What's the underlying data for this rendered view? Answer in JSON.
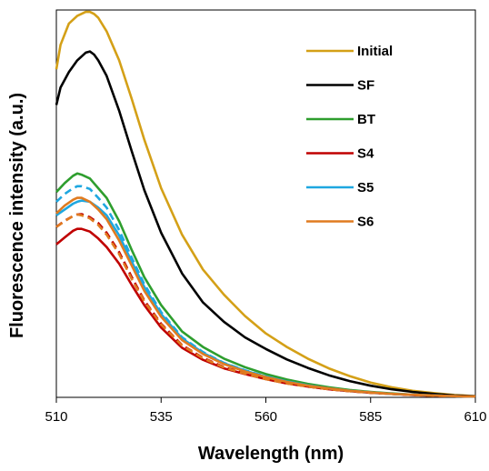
{
  "chart_data": {
    "type": "line",
    "xlabel": "Wavelength (nm)",
    "ylabel": "Fluorescence intensity (a.u.)",
    "xlim": [
      510,
      610
    ],
    "ylim": [
      0,
      1
    ],
    "y_tick_labels_shown": false,
    "x_ticks": [
      510,
      535,
      560,
      585,
      610
    ],
    "x_tick_labels": [
      "510",
      "535",
      "560",
      "585",
      "610"
    ],
    "grid": false,
    "legend": "top-right",
    "legend_entries": [
      "Initial",
      "SF",
      "BT",
      "S4",
      "S5",
      "S6"
    ],
    "series": [
      {
        "name": "Initial",
        "color": "#D4A017",
        "style": "solid",
        "x": [
          510,
          511,
          513,
          515,
          517,
          518,
          519,
          520,
          522,
          525,
          528,
          531,
          535,
          540,
          545,
          550,
          555,
          560,
          565,
          570,
          575,
          580,
          585,
          590,
          595,
          600,
          605,
          610
        ],
        "y": [
          0.847,
          0.91,
          0.965,
          0.985,
          0.995,
          0.995,
          0.99,
          0.98,
          0.945,
          0.87,
          0.77,
          0.665,
          0.54,
          0.42,
          0.33,
          0.265,
          0.21,
          0.165,
          0.13,
          0.1,
          0.075,
          0.055,
          0.038,
          0.026,
          0.017,
          0.011,
          0.006,
          0.003
        ]
      },
      {
        "name": "SF",
        "color": "#000000",
        "style": "solid",
        "x": [
          510,
          511,
          513,
          515,
          517,
          518,
          519,
          520,
          522,
          525,
          528,
          531,
          535,
          540,
          545,
          550,
          555,
          560,
          565,
          570,
          575,
          580,
          585,
          590,
          595,
          600,
          605,
          610
        ],
        "y": [
          0.755,
          0.8,
          0.84,
          0.87,
          0.89,
          0.893,
          0.885,
          0.87,
          0.83,
          0.74,
          0.635,
          0.535,
          0.425,
          0.32,
          0.245,
          0.195,
          0.155,
          0.125,
          0.098,
          0.076,
          0.057,
          0.042,
          0.03,
          0.021,
          0.014,
          0.009,
          0.005,
          0.003
        ]
      },
      {
        "name": "BT",
        "color": "#2E9E2E",
        "style": "solid",
        "x": [
          510,
          512,
          514,
          515,
          516,
          518,
          520,
          522,
          525,
          528,
          531,
          535,
          540,
          545,
          550,
          555,
          560,
          565,
          570,
          575,
          580,
          585,
          590,
          595,
          600,
          605,
          610
        ],
        "y": [
          0.53,
          0.553,
          0.572,
          0.578,
          0.575,
          0.565,
          0.54,
          0.515,
          0.455,
          0.38,
          0.31,
          0.238,
          0.17,
          0.13,
          0.1,
          0.078,
          0.06,
          0.046,
          0.035,
          0.026,
          0.019,
          0.014,
          0.01,
          0.007,
          0.005,
          0.003,
          0.002
        ]
      },
      {
        "name": "S4",
        "color": "#C00000",
        "style": "solid",
        "x": [
          510,
          512,
          514,
          515,
          516,
          518,
          520,
          522,
          525,
          528,
          531,
          535,
          540,
          545,
          550,
          555,
          560,
          565,
          570,
          575,
          580,
          585,
          590,
          595,
          600,
          605,
          610
        ],
        "y": [
          0.395,
          0.413,
          0.43,
          0.435,
          0.435,
          0.428,
          0.41,
          0.388,
          0.345,
          0.29,
          0.238,
          0.18,
          0.128,
          0.097,
          0.075,
          0.06,
          0.047,
          0.036,
          0.028,
          0.021,
          0.016,
          0.012,
          0.009,
          0.006,
          0.004,
          0.003,
          0.002
        ]
      },
      {
        "name": "S4 (dashed)",
        "color": "#C00000",
        "style": "dashed",
        "x": [
          510,
          512,
          514,
          515,
          516,
          518,
          520,
          522,
          525,
          528,
          531,
          535,
          540,
          545,
          550,
          555,
          560,
          565,
          570,
          575,
          580,
          585,
          590,
          595,
          600,
          605,
          610
        ],
        "y": [
          0.44,
          0.456,
          0.468,
          0.472,
          0.473,
          0.465,
          0.45,
          0.425,
          0.375,
          0.31,
          0.25,
          0.19,
          0.135,
          0.102,
          0.078,
          0.062,
          0.048,
          0.037,
          0.028,
          0.021,
          0.016,
          0.012,
          0.009,
          0.006,
          0.004,
          0.003,
          0.002
        ]
      },
      {
        "name": "S5",
        "color": "#1EA7E0",
        "style": "solid",
        "x": [
          510,
          512,
          514,
          515,
          516,
          518,
          520,
          522,
          525,
          528,
          531,
          535,
          540,
          545,
          550,
          555,
          560,
          565,
          570,
          575,
          580,
          585,
          590,
          595,
          600,
          605,
          610
        ],
        "y": [
          0.47,
          0.485,
          0.5,
          0.505,
          0.508,
          0.505,
          0.49,
          0.47,
          0.418,
          0.35,
          0.285,
          0.215,
          0.152,
          0.115,
          0.088,
          0.069,
          0.053,
          0.041,
          0.031,
          0.023,
          0.017,
          0.013,
          0.009,
          0.007,
          0.005,
          0.003,
          0.002
        ]
      },
      {
        "name": "S5 (dashed)",
        "color": "#1EA7E0",
        "style": "dashed",
        "x": [
          510,
          512,
          514,
          515,
          516,
          518,
          520,
          522,
          525,
          528,
          531,
          535,
          540,
          545,
          550,
          555,
          560,
          565,
          570,
          575,
          580,
          585,
          590,
          595,
          600,
          605,
          610
        ],
        "y": [
          0.505,
          0.525,
          0.54,
          0.545,
          0.545,
          0.538,
          0.515,
          0.49,
          0.432,
          0.36,
          0.292,
          0.22,
          0.155,
          0.117,
          0.089,
          0.07,
          0.054,
          0.041,
          0.031,
          0.023,
          0.017,
          0.013,
          0.009,
          0.007,
          0.005,
          0.003,
          0.002
        ]
      },
      {
        "name": "S6",
        "color": "#E07B20",
        "style": "solid",
        "x": [
          510,
          512,
          514,
          515,
          516,
          518,
          520,
          522,
          525,
          528,
          531,
          535,
          540,
          545,
          550,
          555,
          560,
          565,
          570,
          575,
          580,
          585,
          590,
          595,
          600,
          605,
          610
        ],
        "y": [
          0.475,
          0.495,
          0.51,
          0.515,
          0.515,
          0.505,
          0.485,
          0.46,
          0.405,
          0.34,
          0.275,
          0.208,
          0.148,
          0.112,
          0.086,
          0.067,
          0.052,
          0.04,
          0.03,
          0.023,
          0.017,
          0.013,
          0.009,
          0.007,
          0.005,
          0.003,
          0.002
        ]
      },
      {
        "name": "S6 (dashed)",
        "color": "#E07B20",
        "style": "dashed",
        "x": [
          510,
          512,
          514,
          515,
          516,
          518,
          520,
          522,
          525,
          528,
          531,
          535,
          540,
          545,
          550,
          555,
          560,
          565,
          570,
          575,
          580,
          585,
          590,
          595,
          600,
          605,
          610
        ],
        "y": [
          0.44,
          0.455,
          0.468,
          0.472,
          0.47,
          0.462,
          0.445,
          0.42,
          0.37,
          0.305,
          0.248,
          0.188,
          0.134,
          0.101,
          0.077,
          0.061,
          0.047,
          0.036,
          0.028,
          0.021,
          0.016,
          0.012,
          0.009,
          0.006,
          0.004,
          0.003,
          0.002
        ]
      }
    ]
  }
}
